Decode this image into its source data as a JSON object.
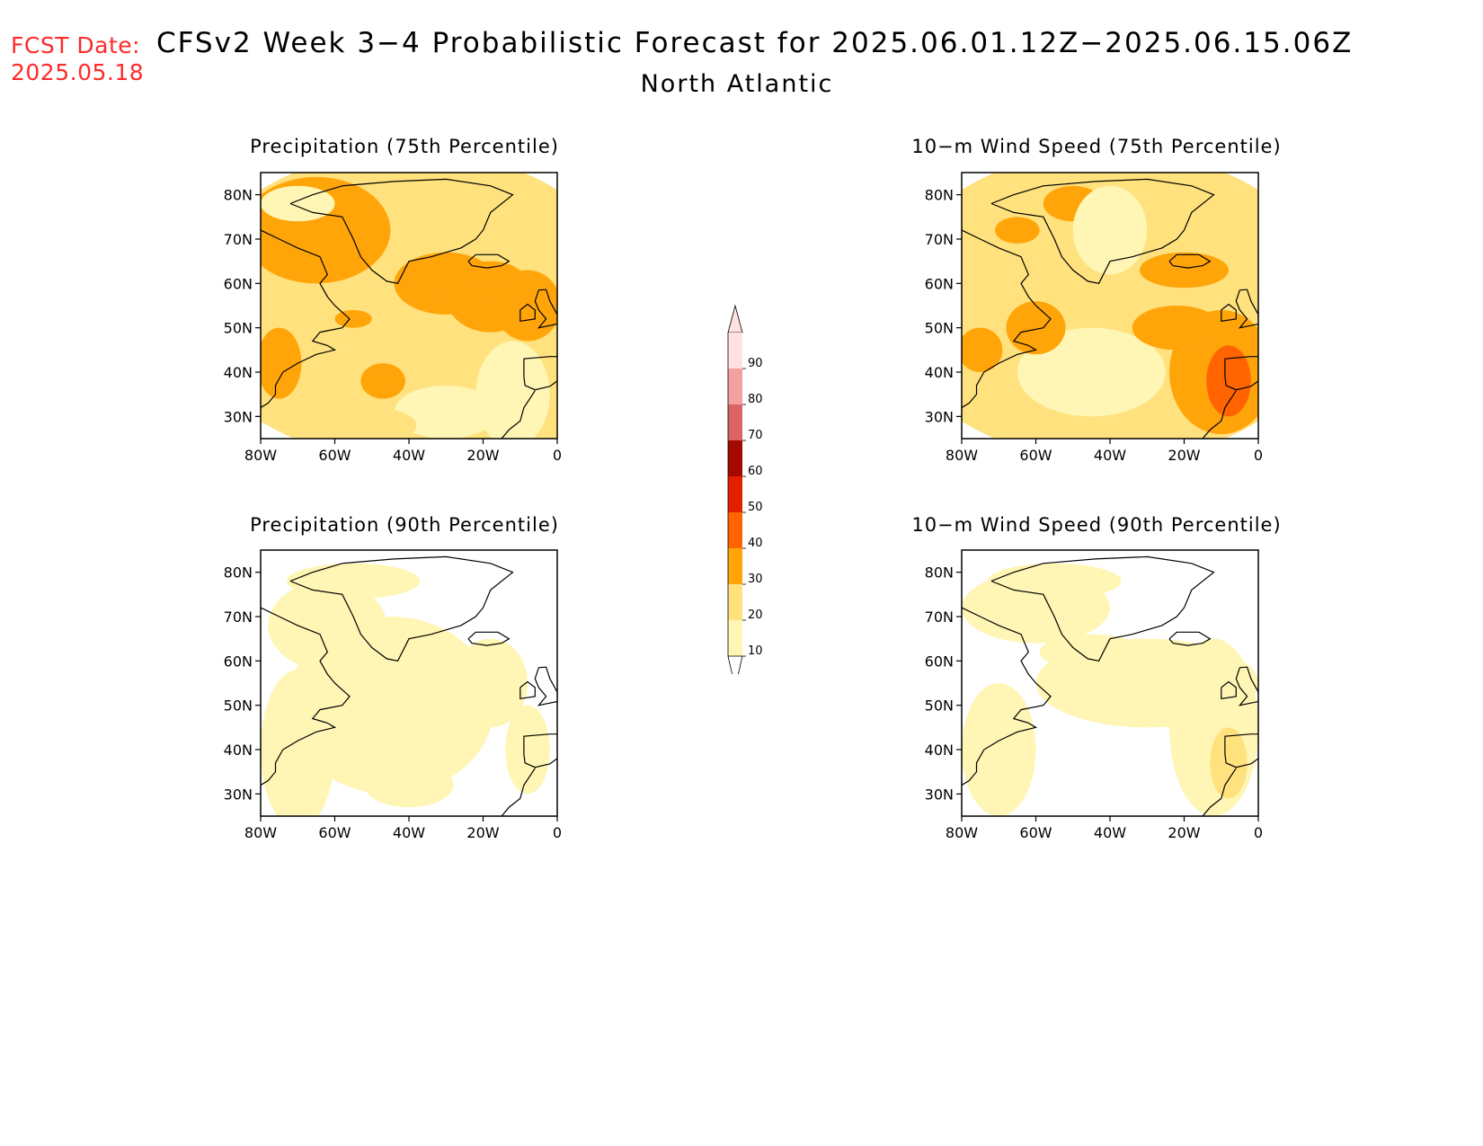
{
  "header": {
    "fcst_label": "FCST Date:",
    "fcst_date": "2025.05.18",
    "title": "CFSv2 Week 3−4 Probabilistic Forecast for 2025.06.01.12Z−2025.06.15.06Z",
    "region": "North Atlantic"
  },
  "panels": [
    {
      "title": "Precipitation (75th Percentile)",
      "field": "precip75"
    },
    {
      "title": "10−m Wind Speed (75th Percentile)",
      "field": "wind75"
    },
    {
      "title": "Precipitation (90th Percentile)",
      "field": "precip90"
    },
    {
      "title": "10−m Wind Speed (90th Percentile)",
      "field": "wind90"
    }
  ],
  "axes": {
    "lat_labels": [
      "80N",
      "70N",
      "60N",
      "50N",
      "40N",
      "30N"
    ],
    "lat_values": [
      80,
      70,
      60,
      50,
      40,
      30
    ],
    "lon_labels": [
      "80W",
      "60W",
      "40W",
      "20W",
      "0"
    ],
    "lon_values": [
      -80,
      -60,
      -40,
      -20,
      0
    ],
    "lat_range": [
      25,
      85
    ],
    "lon_range": [
      -80,
      0
    ]
  },
  "colorbar": {
    "levels": [
      "10",
      "20",
      "30",
      "40",
      "50",
      "60",
      "70",
      "80",
      "90"
    ],
    "colors": [
      "#fff5b4",
      "#ffe17d",
      "#ffa50a",
      "#ff6400",
      "#e61e00",
      "#a50a00",
      "#dc6464",
      "#f5a0a0",
      "#ffe1e1"
    ]
  }
}
